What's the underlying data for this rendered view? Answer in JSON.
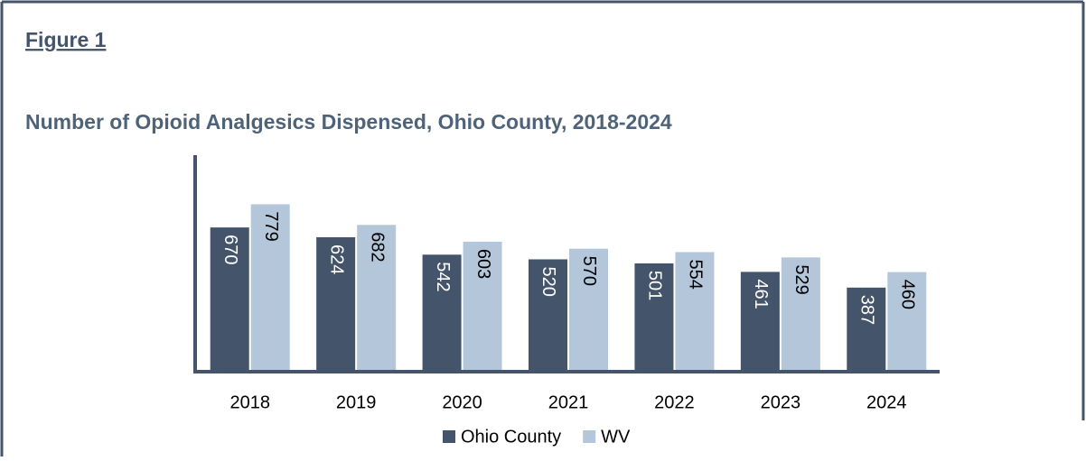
{
  "header": "Figure 1",
  "chart_data": {
    "type": "bar",
    "title": "Number of Opioid Analgesics Dispensed, Ohio County, 2018-2024",
    "categories": [
      "2018",
      "2019",
      "2020",
      "2021",
      "2022",
      "2023",
      "2024"
    ],
    "series": [
      {
        "name": "Ohio County",
        "color": "#44546a",
        "values": [
          670,
          624,
          542,
          520,
          501,
          461,
          387
        ]
      },
      {
        "name": "WV",
        "color": "#b4c7da",
        "values": [
          779,
          682,
          603,
          570,
          554,
          529,
          460
        ]
      }
    ],
    "ylim": [
      0,
      1010
    ]
  }
}
